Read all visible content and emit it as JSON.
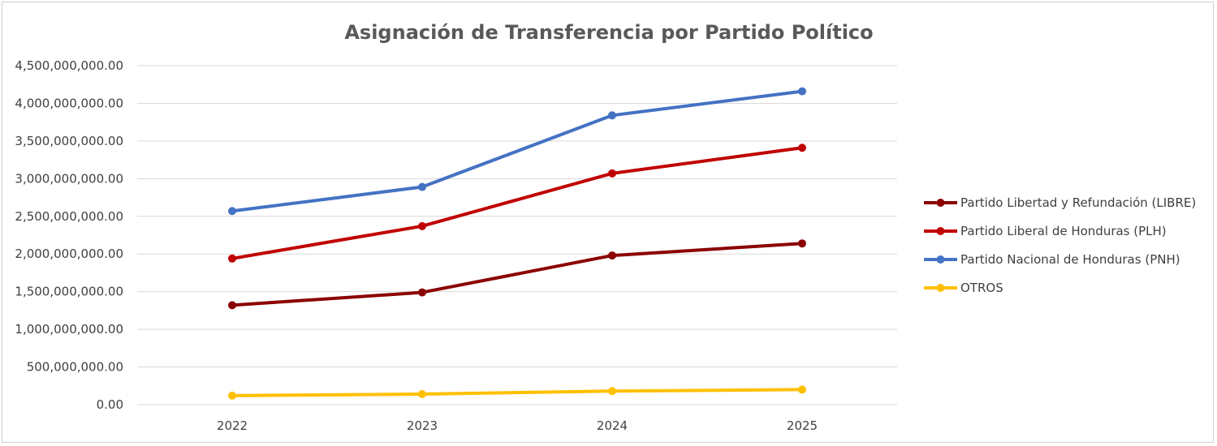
{
  "chart_data": {
    "type": "line",
    "title": "Asignación de Transferencia por Partido Político",
    "categories": [
      "2022",
      "2023",
      "2024",
      "2025"
    ],
    "ylim": [
      0,
      4500000000
    ],
    "ytick_step": 500000000,
    "ytick_labels": [
      "0.00",
      "500,000,000.00",
      "1,000,000,000.00",
      "1,500,000,000.00",
      "2,000,000,000.00",
      "2,500,000,000.00",
      "3,000,000,000.00",
      "3,500,000,000.00",
      "4,000,000,000.00",
      "4,500,000,000.00"
    ],
    "grid": true,
    "legend_position": "right",
    "series": [
      {
        "name": "Partido Libertad y Refundación (LIBRE)",
        "color": "#8B0000",
        "values": [
          1320000000,
          1490000000,
          1980000000,
          2140000000
        ]
      },
      {
        "name": "Partido Liberal de Honduras (PLH)",
        "color": "#C00000",
        "values": [
          1940000000,
          2370000000,
          3070000000,
          3410000000
        ]
      },
      {
        "name": "Partido Nacional de Honduras (PNH)",
        "color": "#4472C4",
        "values": [
          2570000000,
          2890000000,
          3840000000,
          4160000000
        ]
      },
      {
        "name": "OTROS",
        "color": "#FFC000",
        "values": [
          120000000,
          140000000,
          180000000,
          200000000
        ]
      }
    ]
  }
}
